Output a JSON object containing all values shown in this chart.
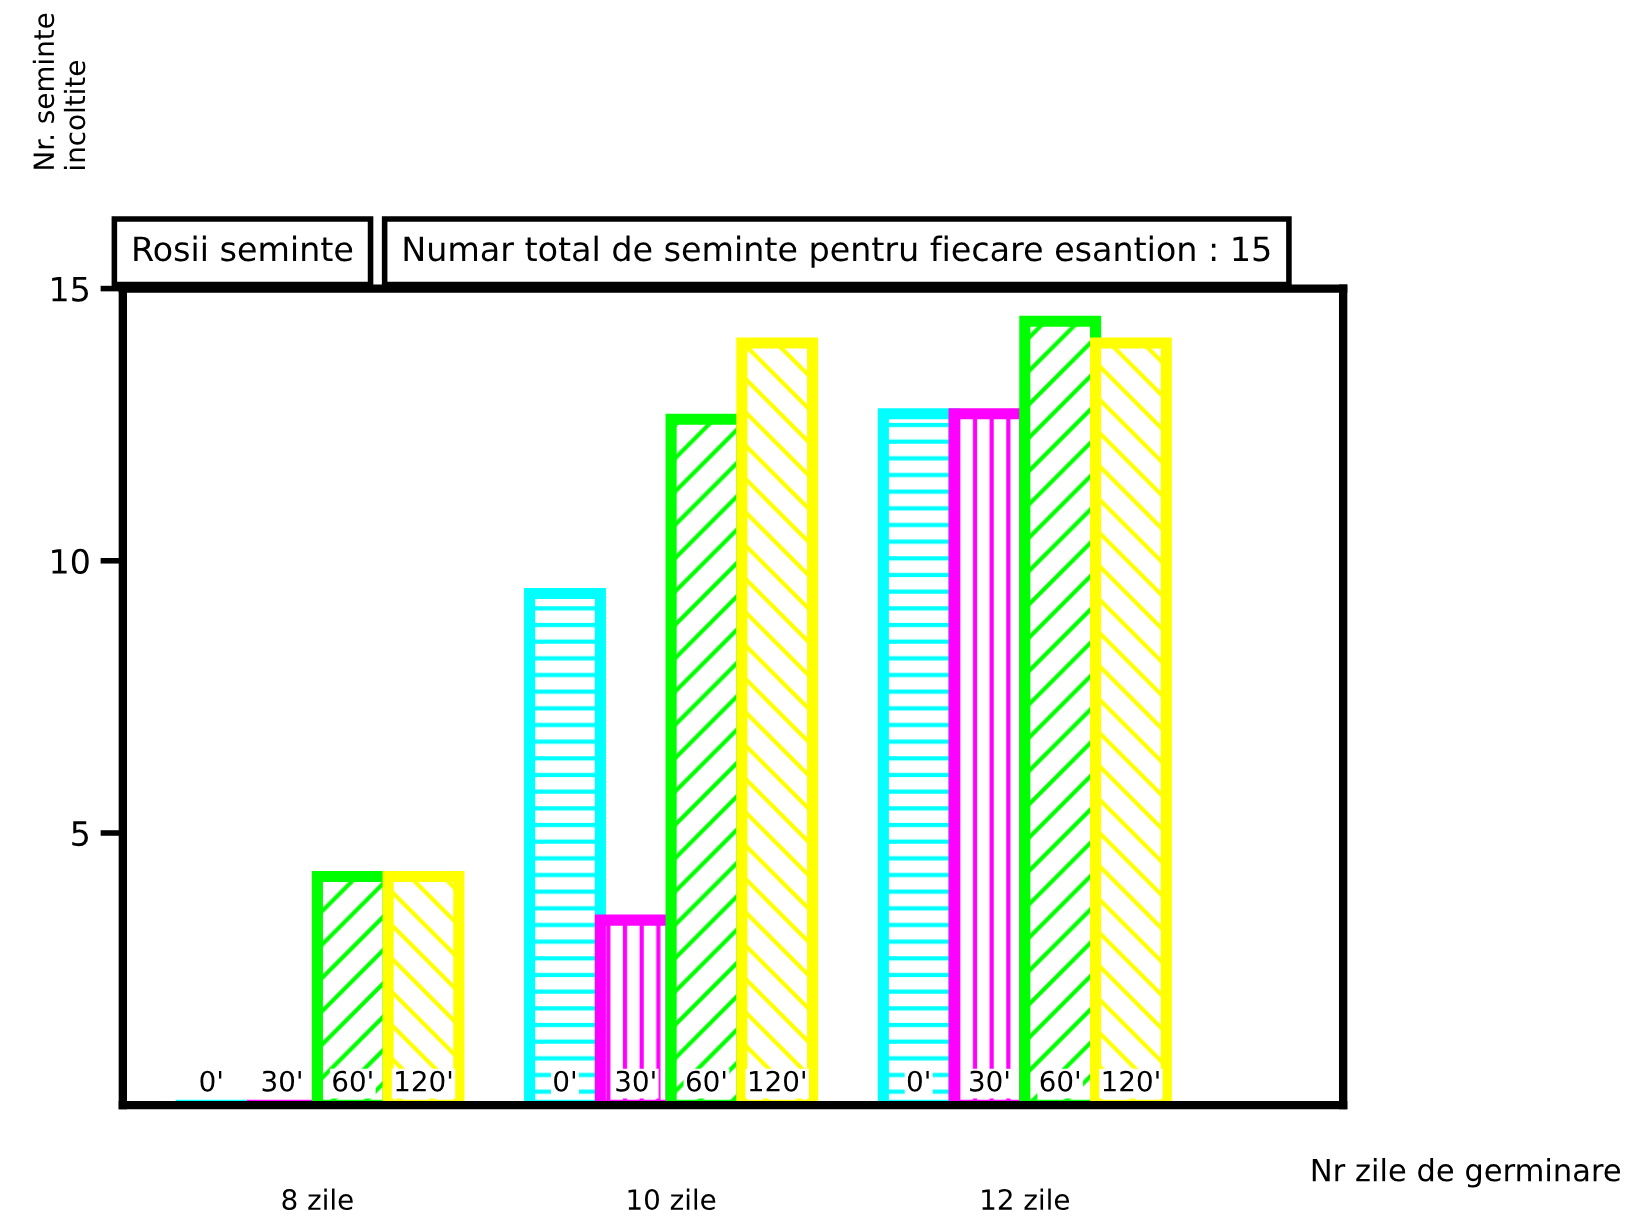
{
  "chart_data": {
    "type": "bar",
    "annotations": [
      "Rosii seminte",
      "Numar total de seminte pentru fiecare esantion : 15"
    ],
    "xlabel": "Nr zile de germinare",
    "ylabel": "Nr. seminte\nincoltite",
    "categories": [
      "8 zile",
      "10 zile",
      "12 zile"
    ],
    "series": [
      {
        "name": "0'",
        "color": "#00ffff",
        "values": [
          0,
          9.4,
          12.7
        ]
      },
      {
        "name": "30'",
        "color": "#ff00ff",
        "values": [
          0,
          3.4,
          12.7
        ]
      },
      {
        "name": "60'",
        "color": "#00ff00",
        "values": [
          4.2,
          12.6,
          14.4
        ]
      },
      {
        "name": "120'",
        "color": "#ffff00",
        "values": [
          4.2,
          14.0,
          14.0
        ]
      }
    ],
    "ylim": [
      0,
      15
    ],
    "yticks": [
      5,
      10,
      15
    ],
    "grid": false,
    "legend": false
  }
}
